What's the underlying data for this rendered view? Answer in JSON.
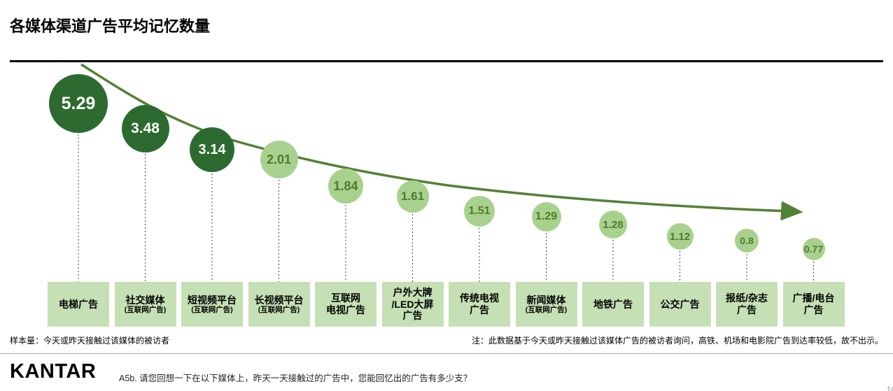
{
  "page": {
    "title": "各媒体渠道广告平均记忆数量",
    "page_number": "10"
  },
  "chart_data": {
    "type": "bubble",
    "title": "各媒体渠道广告平均记忆数量",
    "trend": "decreasing-left-to-right-with-arrow",
    "items": [
      {
        "label": "电梯广告",
        "sublabel": "",
        "value": 5.29,
        "emphasis": "dark"
      },
      {
        "label": "社交媒体",
        "sublabel": "(互联网广告)",
        "value": 3.48,
        "emphasis": "dark"
      },
      {
        "label": "短视频平台",
        "sublabel": "(互联网广告)",
        "value": 3.14,
        "emphasis": "dark"
      },
      {
        "label": "长视频平台",
        "sublabel": "(互联网广告)",
        "value": 2.01,
        "emphasis": "light"
      },
      {
        "label": "互联网\n电视广告",
        "sublabel": "",
        "value": 1.84,
        "emphasis": "light"
      },
      {
        "label": "户外大牌\n/LED大屏\n广告",
        "sublabel": "",
        "value": 1.61,
        "emphasis": "light"
      },
      {
        "label": "传统电视\n广告",
        "sublabel": "",
        "value": 1.51,
        "emphasis": "light"
      },
      {
        "label": "新闻媒体",
        "sublabel": "(互联网广告)",
        "value": 1.29,
        "emphasis": "light"
      },
      {
        "label": "地铁广告",
        "sublabel": "",
        "value": 1.28,
        "emphasis": "light"
      },
      {
        "label": "公交广告",
        "sublabel": "",
        "value": 1.12,
        "emphasis": "light"
      },
      {
        "label": "报纸/杂志\n广告",
        "sublabel": "",
        "value": 0.8,
        "emphasis": "light"
      },
      {
        "label": "广播/电台\n广告",
        "sublabel": "",
        "value": 0.77,
        "emphasis": "light"
      }
    ],
    "colors": {
      "dark_bubble": "#2d6a2f",
      "light_bubble": "#a9d18e",
      "dark_value_text": "#ffffff",
      "light_value_text": "#4e7a2e",
      "label_box_bg": "#c5e0b4",
      "arrow": "#538135",
      "leader_line": "#444444"
    }
  },
  "notes": {
    "left": "样本量：今天或昨天接触过该媒体的被访者",
    "right": "注：此数据基于今天或昨天接触过该媒体广告的被访者询问，高铁、机场和电影院广告到达率较低，故不出示。"
  },
  "footer": {
    "logo": "KANTAR",
    "question": "A5b. 请您回想一下在以下媒体上，昨天一天接触过的广告中，您能回忆出的广告有多少支？"
  }
}
